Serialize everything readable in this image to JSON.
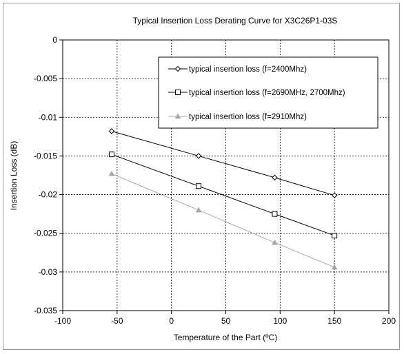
{
  "chart_data": {
    "type": "line",
    "title": "Typical Insertion Loss Derating Curve for X3C26P1-03S",
    "xlabel": "Temperature of the Part (ºC)",
    "ylabel": "Insertion Loss (dB)",
    "xlim": [
      -100,
      200
    ],
    "ylim": [
      -0.035,
      0
    ],
    "xticks": [
      "-100",
      "-50",
      "0",
      "50",
      "100",
      "150",
      "200"
    ],
    "yticks": [
      "0",
      "-0.005",
      "-0.01",
      "-0.015",
      "-0.02",
      "-0.025",
      "-0.03",
      "-0.035"
    ],
    "grid": true,
    "legend_position": "top-right",
    "x": [
      -55,
      25,
      95,
      150
    ],
    "series": [
      {
        "name": "typical insertion loss (f=2400Mhz)",
        "marker": "diamond",
        "color": "#000000",
        "values": [
          -0.0118,
          -0.015,
          -0.0178,
          -0.0201
        ]
      },
      {
        "name": "typical insertion loss (f=2690MHz, 2700Mhz)",
        "marker": "square",
        "color": "#000000",
        "values": [
          -0.0148,
          -0.0189,
          -0.0225,
          -0.0253
        ]
      },
      {
        "name": "typical insertion loss (f=2910Mhz)",
        "marker": "triangle",
        "color": "#a6a6a6",
        "values": [
          -0.0173,
          -0.022,
          -0.0262,
          -0.0294
        ]
      }
    ]
  }
}
